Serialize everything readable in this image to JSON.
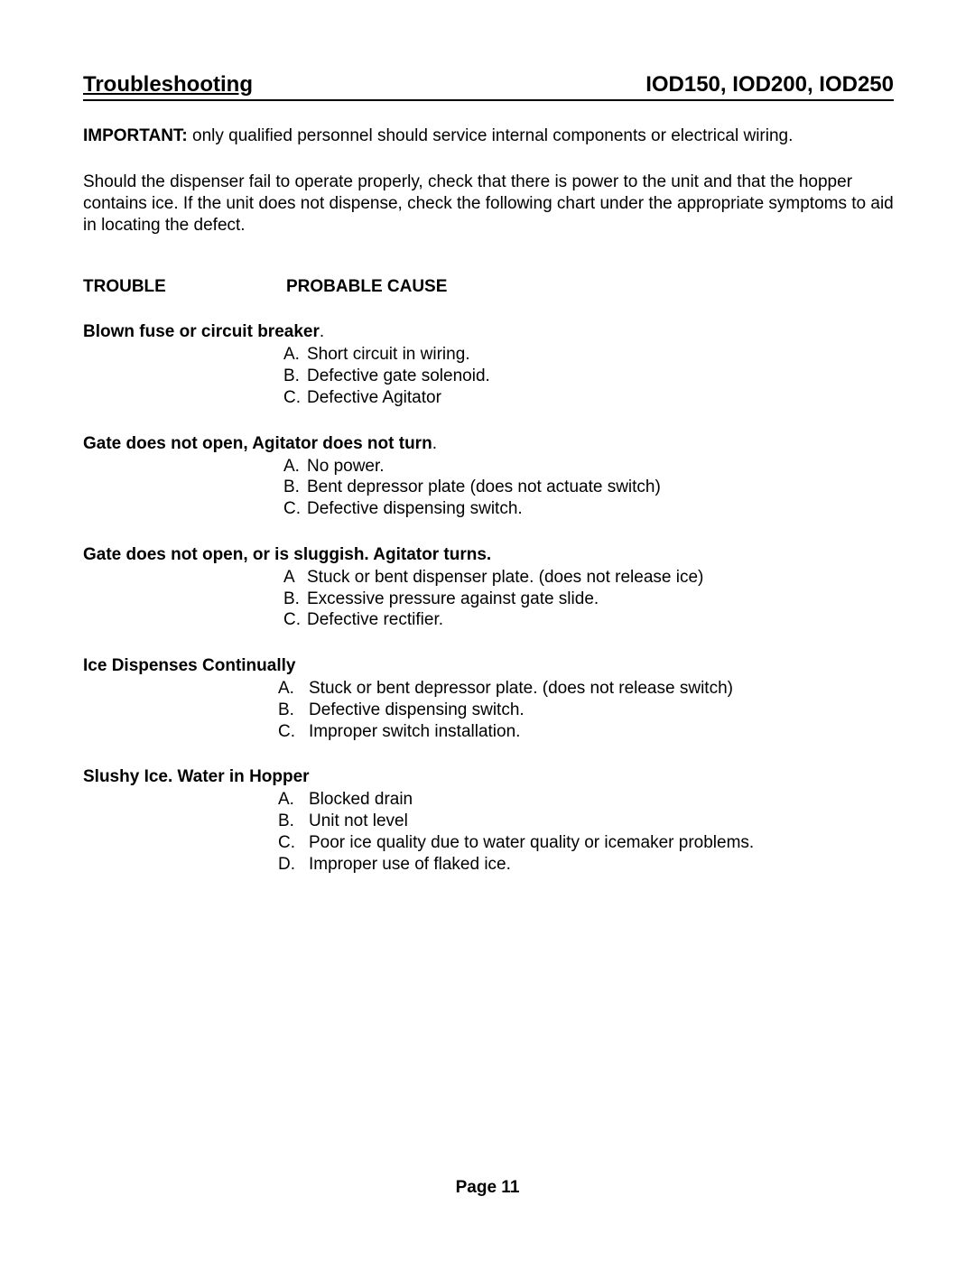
{
  "header": {
    "title": "Troubleshooting",
    "models": "IOD150, IOD200, IOD250"
  },
  "important": {
    "label": "IMPORTANT:",
    "text": " only qualified personnel should service internal components or electrical wiring."
  },
  "intro": "Should the dispenser fail to operate properly, check that there is power to the unit and that the hopper contains ice.  If the unit does not dispense, check the following chart under the appropriate symptoms to aid in locating the defect.",
  "columns": {
    "trouble": "TROUBLE",
    "cause": "PROBABLE CAUSE"
  },
  "sections": [
    {
      "title": "Blown fuse or circuit breaker",
      "period": ".",
      "indent": "a",
      "tight": true,
      "causes": [
        {
          "marker": "A.",
          "text": "Short circuit in wiring."
        },
        {
          "marker": "B.",
          "text": "Defective gate solenoid."
        },
        {
          "marker": "C.",
          "text": "Defective Agitator"
        }
      ]
    },
    {
      "title": "Gate does not open, Agitator does not turn",
      "period": ".",
      "indent": "a",
      "tight": true,
      "causes": [
        {
          "marker": "A.",
          "text": "No power."
        },
        {
          "marker": "B.",
          "text": "Bent depressor plate (does not actuate switch)"
        },
        {
          "marker": "C.",
          "text": "Defective dispensing switch."
        }
      ]
    },
    {
      "title": "Gate does not open, or is sluggish. Agitator turns.",
      "period": "",
      "indent": "a",
      "tight": true,
      "causes": [
        {
          "marker": "A",
          "text": "Stuck or bent dispenser plate. (does not release ice)"
        },
        {
          "marker": "B.",
          "text": "Excessive pressure against gate slide."
        },
        {
          "marker": "C.",
          "text": "Defective rectifier."
        }
      ]
    },
    {
      "title": "Ice Dispenses Continually",
      "period": "",
      "indent": "b",
      "tight": false,
      "causes": [
        {
          "marker": "A.",
          "text": "Stuck or bent depressor plate. (does not release switch)"
        },
        {
          "marker": "B.",
          "text": "Defective dispensing switch."
        },
        {
          "marker": "C.",
          "text": "Improper switch installation."
        }
      ]
    },
    {
      "title": "Slushy Ice. Water in Hopper",
      "period": "",
      "indent": "b",
      "tight": false,
      "causes": [
        {
          "marker": "A.",
          "text": "Blocked drain"
        },
        {
          "marker": "B.",
          "text": "Unit not level"
        },
        {
          "marker": "C.",
          "text": "Poor ice quality due to water quality or icemaker problems."
        },
        {
          "marker": "D.",
          "text": "Improper use of flaked ice."
        }
      ]
    }
  ],
  "footer": "Page 11"
}
